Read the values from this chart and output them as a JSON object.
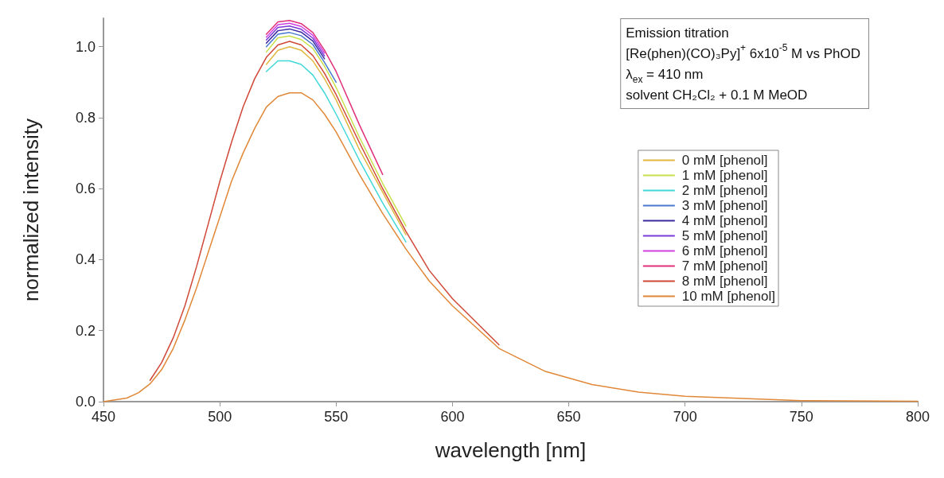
{
  "chart_data": {
    "type": "line",
    "xlabel": "wavelength [nm]",
    "ylabel": "normalized intensity",
    "annotations": [
      "Emission titration\n[Re(phen)(CO)₃Py]$^{+}$ 6x10$^{-5}$ M vs PhOD\nλ$_{ex}$ = 410 nm\nsolvent CH₂Cl₂ + 0.1 M MeOD"
    ],
    "series": [
      {
        "name": "0 mM [phenol]",
        "color": "#e0b840",
        "x": [
          520,
          525,
          530,
          535,
          540,
          545,
          550,
          560,
          570,
          580
        ],
        "values": [
          0.95,
          0.99,
          1.0,
          0.99,
          0.96,
          0.91,
          0.85,
          0.71,
          0.59,
          0.47
        ]
      },
      {
        "name": "1 mM [phenol]",
        "color": "#c8e04a",
        "x": [
          520,
          525,
          530,
          535,
          540,
          545,
          550,
          560,
          570,
          580
        ],
        "values": [
          0.985,
          1.025,
          1.03,
          1.02,
          0.995,
          0.945,
          0.885,
          0.745,
          0.615,
          0.495
        ]
      },
      {
        "name": "2 mM [phenol]",
        "color": "#40d8d8",
        "x": [
          520,
          525,
          530,
          535,
          540,
          545,
          550,
          560,
          570,
          580
        ],
        "values": [
          0.93,
          0.96,
          0.96,
          0.95,
          0.92,
          0.87,
          0.81,
          0.68,
          0.56,
          0.45
        ]
      },
      {
        "name": "3 mM [phenol]",
        "color": "#4a78d0",
        "x": [
          520,
          525,
          530,
          535,
          540,
          545,
          550
        ],
        "values": [
          1.0,
          1.035,
          1.04,
          1.031,
          1.006,
          0.956,
          0.9
        ]
      },
      {
        "name": "4 mM [phenol]",
        "color": "#3a2aa0",
        "x": [
          520,
          525,
          530,
          535,
          540,
          545
        ],
        "values": [
          1.01,
          1.045,
          1.05,
          1.041,
          1.016,
          0.966
        ]
      },
      {
        "name": "5 mM [phenol]",
        "color": "#7a3ad8",
        "x": [
          520,
          525,
          530,
          535,
          540,
          545
        ],
        "values": [
          1.019,
          1.054,
          1.058,
          1.049,
          1.024,
          0.974
        ]
      },
      {
        "name": "6 mM [phenol]",
        "color": "#d040e0",
        "x": [
          520,
          525,
          530,
          535,
          540,
          545
        ],
        "values": [
          1.027,
          1.062,
          1.066,
          1.057,
          1.032,
          0.982
        ]
      },
      {
        "name": "7 mM [phenol]",
        "color": "#e0307a",
        "x": [
          520,
          525,
          530,
          535,
          540,
          545,
          550,
          560,
          570
        ],
        "values": [
          1.035,
          1.07,
          1.074,
          1.065,
          1.04,
          0.99,
          0.93,
          0.78,
          0.64
        ]
      },
      {
        "name": "8 mM [phenol]",
        "color": "#d04838",
        "x": [
          470,
          475,
          480,
          485,
          490,
          495,
          500,
          505,
          510,
          515,
          520,
          525,
          530,
          535,
          540,
          545,
          550,
          560,
          570,
          580,
          590,
          600,
          620
        ],
        "values": [
          0.06,
          0.11,
          0.18,
          0.27,
          0.38,
          0.5,
          0.62,
          0.73,
          0.83,
          0.91,
          0.97,
          1.005,
          1.015,
          1.005,
          0.975,
          0.925,
          0.865,
          0.73,
          0.6,
          0.48,
          0.37,
          0.29,
          0.16
        ]
      },
      {
        "name": "10 mM [phenol]",
        "color": "#e08838",
        "x": [
          450,
          460,
          465,
          470,
          475,
          480,
          485,
          490,
          495,
          500,
          505,
          510,
          515,
          520,
          525,
          530,
          535,
          540,
          545,
          550,
          560,
          570,
          580,
          590,
          600,
          620,
          640,
          660,
          680,
          700,
          750,
          800
        ],
        "values": [
          0,
          0.01,
          0.025,
          0.05,
          0.09,
          0.15,
          0.23,
          0.32,
          0.42,
          0.52,
          0.62,
          0.7,
          0.77,
          0.83,
          0.86,
          0.87,
          0.87,
          0.85,
          0.81,
          0.76,
          0.64,
          0.53,
          0.43,
          0.34,
          0.27,
          0.15,
          0.085,
          0.048,
          0.027,
          0.015,
          0.003,
          0.001
        ]
      }
    ],
    "xlim": [
      450,
      800
    ],
    "xticks": [
      450,
      500,
      550,
      600,
      650,
      700,
      750,
      800
    ],
    "ylim": [
      0,
      1.08
    ],
    "yticks": [
      {
        "value": 0,
        "label": "0.0"
      },
      0.2,
      0.4,
      0.6,
      0.8,
      {
        "value": 1,
        "label": "1.0"
      }
    ],
    "grid": false,
    "legend": "right",
    "marker": "none",
    "line_style": "solid"
  }
}
